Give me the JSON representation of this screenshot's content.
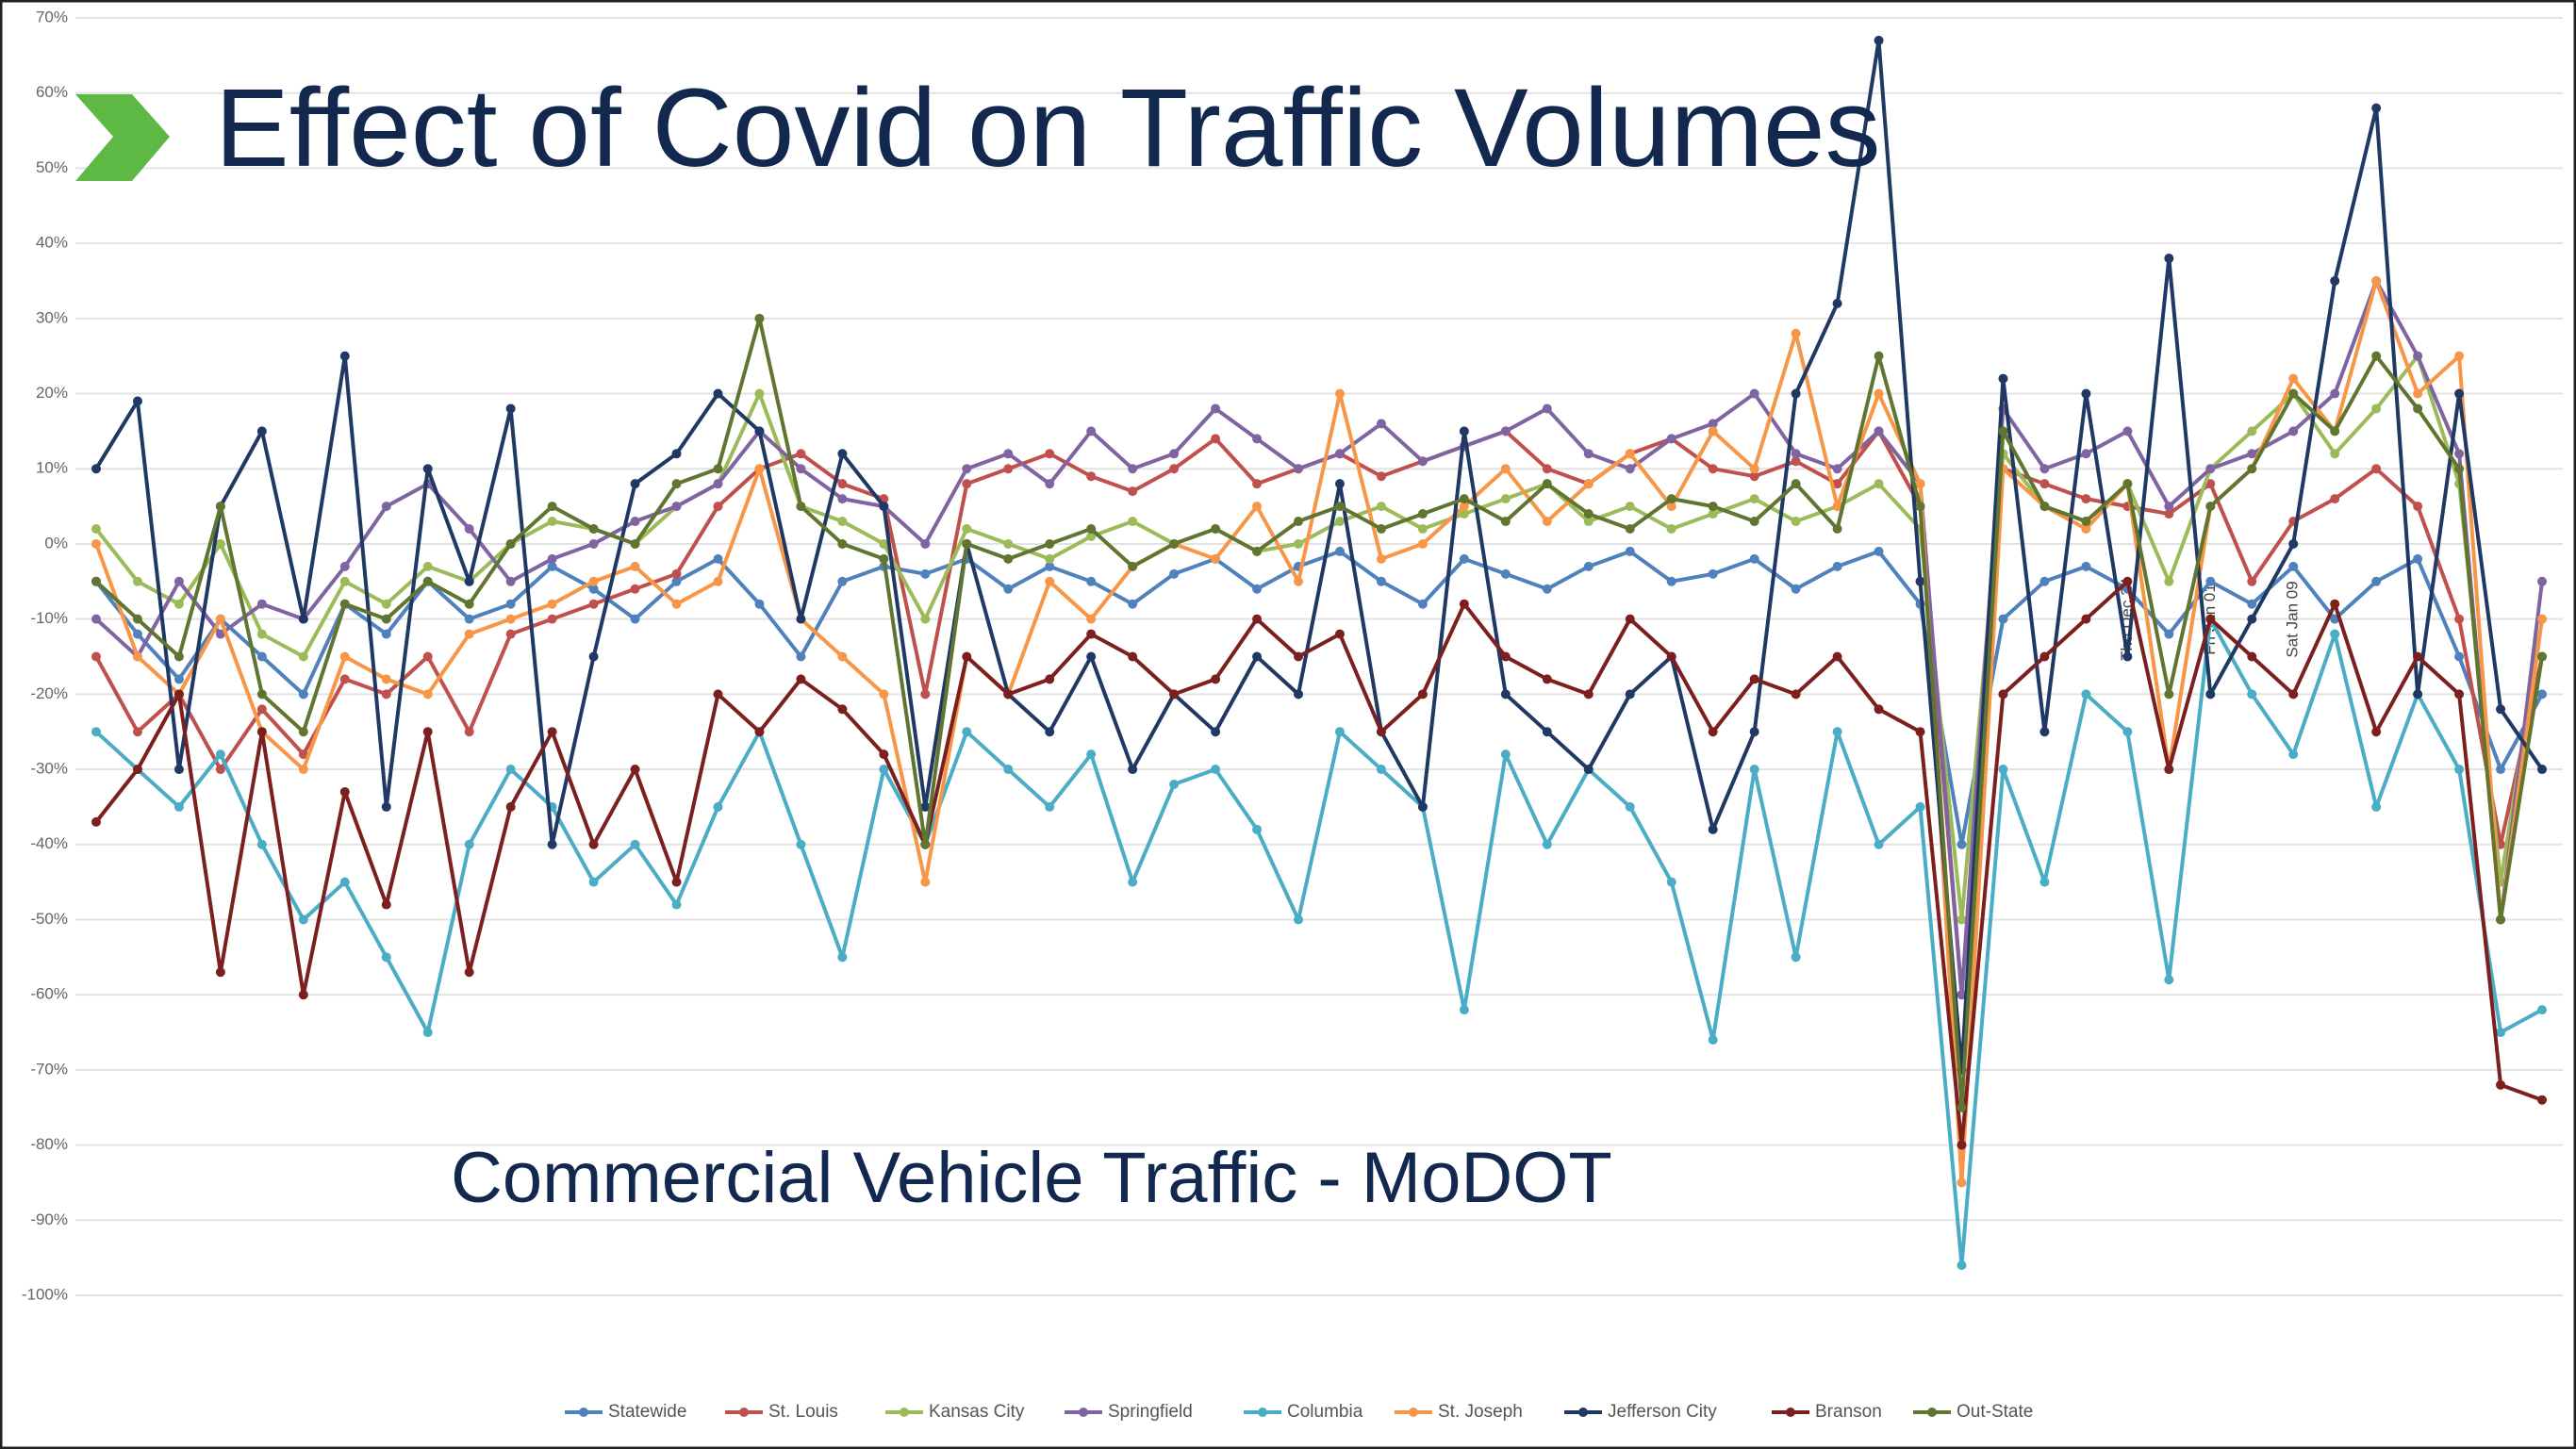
{
  "chart_data": {
    "type": "line",
    "title": "Effect of Covid on Traffic Volumes",
    "subtitle": "Commercial Vehicle Traffic - MoDOT",
    "categories": [
      null,
      null,
      null,
      null,
      null,
      null,
      null,
      null,
      null,
      null,
      null,
      null,
      null,
      null,
      null,
      null,
      null,
      null,
      null,
      null,
      null,
      null,
      null,
      null,
      null,
      null,
      null,
      null,
      null,
      null,
      null,
      null,
      null,
      null,
      null,
      null,
      null,
      null,
      null,
      null,
      null,
      null,
      null,
      null,
      null,
      null,
      null,
      null,
      null,
      "Thu Dec 24",
      null,
      "Fri Jan 01",
      null,
      "Sat Jan 09",
      null,
      null,
      null,
      null,
      null,
      null
    ],
    "ylim": [
      -100,
      70
    ],
    "yticks": [
      {
        "value": -100,
        "label": "-100%"
      },
      {
        "value": -90,
        "label": "-90%"
      },
      {
        "value": -80,
        "label": "-80%"
      },
      {
        "value": -70,
        "label": "-70%"
      },
      {
        "value": -60,
        "label": "-60%"
      },
      {
        "value": -50,
        "label": "-50%"
      },
      {
        "value": -40,
        "label": "-40%"
      },
      {
        "value": -30,
        "label": "-30%"
      },
      {
        "value": -20,
        "label": "-20%"
      },
      {
        "value": -10,
        "label": "-10%"
      },
      {
        "value": 0,
        "label": "0%"
      },
      {
        "value": 10,
        "label": "10%"
      },
      {
        "value": 20,
        "label": "20%"
      },
      {
        "value": 30,
        "label": "30%"
      },
      {
        "value": 40,
        "label": "40%"
      },
      {
        "value": 50,
        "label": "50%"
      },
      {
        "value": 60,
        "label": "60%"
      },
      {
        "value": 70,
        "label": "70%"
      }
    ],
    "grid": true,
    "legend": "bottom",
    "series": [
      {
        "name": "Statewide",
        "color": "#4f81bd",
        "values": [
          -5,
          -12,
          -18,
          -10,
          -15,
          -20,
          -8,
          -12,
          -5,
          -10,
          -8,
          -3,
          -6,
          -10,
          -5,
          -2,
          -8,
          -15,
          -5,
          -3,
          -4,
          -2,
          -6,
          -3,
          -5,
          -8,
          -4,
          -2,
          -6,
          -3,
          -1,
          -5,
          -8,
          -2,
          -4,
          -6,
          -3,
          -1,
          -5,
          -4,
          -2,
          -6,
          -3,
          -1,
          -8,
          -40,
          -10,
          -5,
          -3,
          -6,
          -12,
          -5,
          -8,
          -3,
          -10,
          -5,
          -2,
          -15,
          -30,
          -20
        ]
      },
      {
        "name": "St. Louis",
        "color": "#c0504d",
        "values": [
          -15,
          -25,
          -20,
          -30,
          -22,
          -28,
          -18,
          -20,
          -15,
          -25,
          -12,
          -10,
          -8,
          -6,
          -4,
          5,
          10,
          12,
          8,
          6,
          -20,
          8,
          10,
          12,
          9,
          7,
          10,
          14,
          8,
          10,
          12,
          9,
          11,
          13,
          15,
          10,
          8,
          12,
          14,
          10,
          9,
          11,
          8,
          15,
          5,
          -60,
          10,
          8,
          6,
          5,
          4,
          8,
          -5,
          3,
          6,
          10,
          5,
          -10,
          -40,
          -15
        ]
      },
      {
        "name": "Kansas City",
        "color": "#9bbb59",
        "values": [
          2,
          -5,
          -8,
          0,
          -12,
          -15,
          -5,
          -8,
          -3,
          -5,
          0,
          3,
          2,
          0,
          5,
          8,
          20,
          5,
          3,
          0,
          -10,
          2,
          0,
          -2,
          1,
          3,
          0,
          2,
          -1,
          0,
          3,
          5,
          2,
          4,
          6,
          8,
          3,
          5,
          2,
          4,
          6,
          3,
          5,
          8,
          2,
          -50,
          12,
          5,
          3,
          8,
          -5,
          10,
          15,
          20,
          12,
          18,
          25,
          8,
          -45,
          -10
        ]
      },
      {
        "name": "Springfield",
        "color": "#8064a2",
        "values": [
          -10,
          -15,
          -5,
          -12,
          -8,
          -10,
          -3,
          5,
          8,
          2,
          -5,
          -2,
          0,
          3,
          5,
          8,
          15,
          10,
          6,
          5,
          0,
          10,
          12,
          8,
          15,
          10,
          12,
          18,
          14,
          10,
          12,
          16,
          11,
          13,
          15,
          18,
          12,
          10,
          14,
          16,
          20,
          12,
          10,
          15,
          8,
          -60,
          18,
          10,
          12,
          15,
          5,
          10,
          12,
          15,
          20,
          35,
          25,
          12,
          -50,
          -5
        ]
      },
      {
        "name": "Columbia",
        "color": "#4bacc6",
        "values": [
          -25,
          -30,
          -35,
          -28,
          -40,
          -50,
          -45,
          -55,
          -65,
          -40,
          -30,
          -35,
          -45,
          -40,
          -48,
          -35,
          -25,
          -40,
          -55,
          -30,
          -40,
          -25,
          -30,
          -35,
          -28,
          -45,
          -32,
          -30,
          -38,
          -50,
          -25,
          -30,
          -35,
          -62,
          -28,
          -40,
          -30,
          -35,
          -45,
          -66,
          -30,
          -55,
          -25,
          -40,
          -35,
          -96,
          -30,
          -45,
          -20,
          -25,
          -58,
          -10,
          -20,
          -28,
          -12,
          -35,
          -20,
          -30,
          -65,
          -62
        ]
      },
      {
        "name": "St. Joseph",
        "color": "#f79646",
        "values": [
          0,
          -15,
          -20,
          -10,
          -25,
          -30,
          -15,
          -18,
          -20,
          -12,
          -10,
          -8,
          -5,
          -3,
          -8,
          -5,
          10,
          -10,
          -15,
          -20,
          -45,
          -15,
          -20,
          -5,
          -10,
          -3,
          0,
          -2,
          5,
          -5,
          20,
          -2,
          0,
          5,
          10,
          3,
          8,
          12,
          5,
          15,
          10,
          28,
          5,
          20,
          8,
          -85,
          10,
          5,
          2,
          8,
          -30,
          5,
          10,
          22,
          15,
          35,
          20,
          25,
          -50,
          -10
        ]
      },
      {
        "name": "Jefferson City",
        "color": "#1f3864",
        "values": [
          10,
          19,
          -30,
          5,
          15,
          -10,
          25,
          -35,
          10,
          -5,
          18,
          -40,
          -15,
          8,
          12,
          20,
          15,
          -10,
          12,
          5,
          -35,
          0,
          -20,
          -25,
          -15,
          -30,
          -20,
          -25,
          -15,
          -20,
          8,
          -25,
          -35,
          15,
          -20,
          -25,
          -30,
          -20,
          -15,
          -38,
          -25,
          20,
          32,
          67,
          -5,
          -70,
          22,
          -25,
          20,
          -15,
          38,
          -20,
          -10,
          0,
          35,
          58,
          -20,
          20,
          -22,
          -30
        ]
      },
      {
        "name": "Branson",
        "color": "#7b1f1f",
        "values": [
          -37,
          -30,
          -20,
          -57,
          -25,
          -60,
          -33,
          -48,
          -25,
          -57,
          -35,
          -25,
          -40,
          -30,
          -45,
          -20,
          -25,
          -18,
          -22,
          -28,
          -40,
          -15,
          -20,
          -18,
          -12,
          -15,
          -20,
          -18,
          -10,
          -15,
          -12,
          -25,
          -20,
          -8,
          -15,
          -18,
          -20,
          -10,
          -15,
          -25,
          -18,
          -20,
          -15,
          -22,
          -25,
          -80,
          -20,
          -15,
          -10,
          -5,
          -30,
          -10,
          -15,
          -20,
          -8,
          -25,
          -15,
          -20,
          -72,
          -74
        ]
      },
      {
        "name": "Out-State",
        "color": "#5f7530",
        "values": [
          -5,
          -10,
          -15,
          5,
          -20,
          -25,
          -8,
          -10,
          -5,
          -8,
          0,
          5,
          2,
          0,
          8,
          10,
          30,
          5,
          0,
          -2,
          -40,
          0,
          -2,
          0,
          2,
          -3,
          0,
          2,
          -1,
          3,
          5,
          2,
          4,
          6,
          3,
          8,
          4,
          2,
          6,
          5,
          3,
          8,
          2,
          25,
          5,
          -75,
          15,
          5,
          3,
          8,
          -20,
          5,
          10,
          20,
          15,
          25,
          18,
          10,
          -50,
          -15
        ]
      }
    ]
  }
}
